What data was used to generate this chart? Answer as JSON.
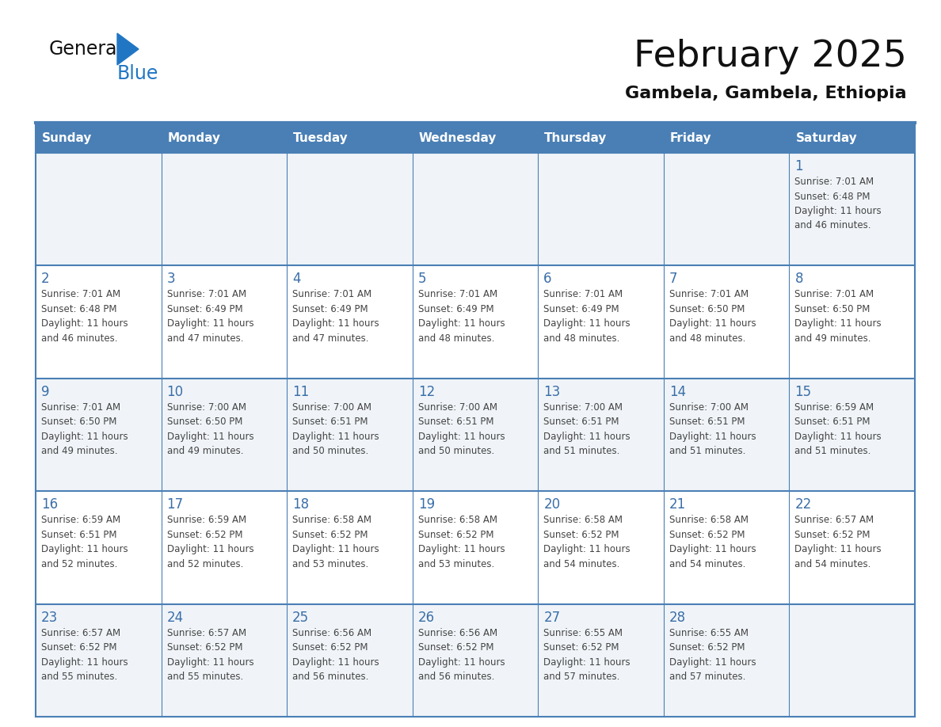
{
  "title": "February 2025",
  "subtitle": "Gambela, Gambela, Ethiopia",
  "days_of_week": [
    "Sunday",
    "Monday",
    "Tuesday",
    "Wednesday",
    "Thursday",
    "Friday",
    "Saturday"
  ],
  "header_bg": "#4a7fb5",
  "header_text": "#ffffff",
  "row_bg_light": "#f0f4f8",
  "row_bg_white": "#ffffff",
  "day_text_color": "#3a6ea8",
  "info_text_color": "#444444",
  "border_color": "#4a7fb5",
  "line_color": "#6a9fd8",
  "calendar_data": [
    [
      null,
      null,
      null,
      null,
      null,
      null,
      {
        "day": "1",
        "sunrise": "7:01 AM",
        "sunset": "6:48 PM",
        "daylight": "11 hours\nand 46 minutes."
      }
    ],
    [
      {
        "day": "2",
        "sunrise": "7:01 AM",
        "sunset": "6:48 PM",
        "daylight": "11 hours\nand 46 minutes."
      },
      {
        "day": "3",
        "sunrise": "7:01 AM",
        "sunset": "6:49 PM",
        "daylight": "11 hours\nand 47 minutes."
      },
      {
        "day": "4",
        "sunrise": "7:01 AM",
        "sunset": "6:49 PM",
        "daylight": "11 hours\nand 47 minutes."
      },
      {
        "day": "5",
        "sunrise": "7:01 AM",
        "sunset": "6:49 PM",
        "daylight": "11 hours\nand 48 minutes."
      },
      {
        "day": "6",
        "sunrise": "7:01 AM",
        "sunset": "6:49 PM",
        "daylight": "11 hours\nand 48 minutes."
      },
      {
        "day": "7",
        "sunrise": "7:01 AM",
        "sunset": "6:50 PM",
        "daylight": "11 hours\nand 48 minutes."
      },
      {
        "day": "8",
        "sunrise": "7:01 AM",
        "sunset": "6:50 PM",
        "daylight": "11 hours\nand 49 minutes."
      }
    ],
    [
      {
        "day": "9",
        "sunrise": "7:01 AM",
        "sunset": "6:50 PM",
        "daylight": "11 hours\nand 49 minutes."
      },
      {
        "day": "10",
        "sunrise": "7:00 AM",
        "sunset": "6:50 PM",
        "daylight": "11 hours\nand 49 minutes."
      },
      {
        "day": "11",
        "sunrise": "7:00 AM",
        "sunset": "6:51 PM",
        "daylight": "11 hours\nand 50 minutes."
      },
      {
        "day": "12",
        "sunrise": "7:00 AM",
        "sunset": "6:51 PM",
        "daylight": "11 hours\nand 50 minutes."
      },
      {
        "day": "13",
        "sunrise": "7:00 AM",
        "sunset": "6:51 PM",
        "daylight": "11 hours\nand 51 minutes."
      },
      {
        "day": "14",
        "sunrise": "7:00 AM",
        "sunset": "6:51 PM",
        "daylight": "11 hours\nand 51 minutes."
      },
      {
        "day": "15",
        "sunrise": "6:59 AM",
        "sunset": "6:51 PM",
        "daylight": "11 hours\nand 51 minutes."
      }
    ],
    [
      {
        "day": "16",
        "sunrise": "6:59 AM",
        "sunset": "6:51 PM",
        "daylight": "11 hours\nand 52 minutes."
      },
      {
        "day": "17",
        "sunrise": "6:59 AM",
        "sunset": "6:52 PM",
        "daylight": "11 hours\nand 52 minutes."
      },
      {
        "day": "18",
        "sunrise": "6:58 AM",
        "sunset": "6:52 PM",
        "daylight": "11 hours\nand 53 minutes."
      },
      {
        "day": "19",
        "sunrise": "6:58 AM",
        "sunset": "6:52 PM",
        "daylight": "11 hours\nand 53 minutes."
      },
      {
        "day": "20",
        "sunrise": "6:58 AM",
        "sunset": "6:52 PM",
        "daylight": "11 hours\nand 54 minutes."
      },
      {
        "day": "21",
        "sunrise": "6:58 AM",
        "sunset": "6:52 PM",
        "daylight": "11 hours\nand 54 minutes."
      },
      {
        "day": "22",
        "sunrise": "6:57 AM",
        "sunset": "6:52 PM",
        "daylight": "11 hours\nand 54 minutes."
      }
    ],
    [
      {
        "day": "23",
        "sunrise": "6:57 AM",
        "sunset": "6:52 PM",
        "daylight": "11 hours\nand 55 minutes."
      },
      {
        "day": "24",
        "sunrise": "6:57 AM",
        "sunset": "6:52 PM",
        "daylight": "11 hours\nand 55 minutes."
      },
      {
        "day": "25",
        "sunrise": "6:56 AM",
        "sunset": "6:52 PM",
        "daylight": "11 hours\nand 56 minutes."
      },
      {
        "day": "26",
        "sunrise": "6:56 AM",
        "sunset": "6:52 PM",
        "daylight": "11 hours\nand 56 minutes."
      },
      {
        "day": "27",
        "sunrise": "6:55 AM",
        "sunset": "6:52 PM",
        "daylight": "11 hours\nand 57 minutes."
      },
      {
        "day": "28",
        "sunrise": "6:55 AM",
        "sunset": "6:52 PM",
        "daylight": "11 hours\nand 57 minutes."
      },
      null
    ]
  ]
}
